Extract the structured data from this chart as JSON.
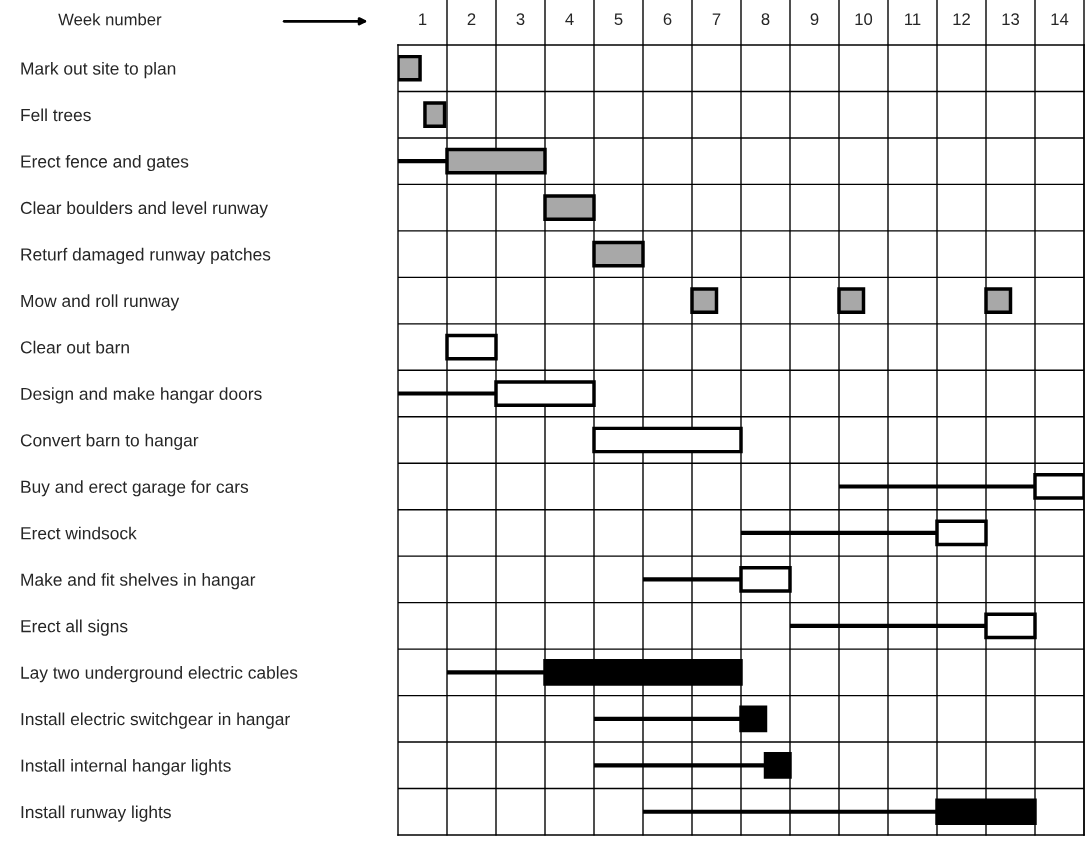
{
  "chart_data": {
    "type": "bar",
    "orientation": "horizontal",
    "xlabel": "Week number",
    "categories": [
      "Mark out site to plan",
      "Fell trees",
      "Erect fence and gates",
      "Clear boulders and level runway",
      "Returf damaged runway patches",
      "Mow and roll runway",
      "Clear out barn",
      "Design and make hangar doors",
      "Convert barn to hangar",
      "Buy and erect garage for cars",
      "Erect windsock",
      "Make and fit shelves in hangar",
      "Erect all signs",
      "Lay two underground electric cables",
      "Install electric switchgear in hangar",
      "Install internal hangar lights",
      "Install runway lights"
    ],
    "xlim": [
      0,
      14
    ],
    "xticks": [
      {
        "value": 0.5,
        "label": "1"
      },
      {
        "value": 1.5,
        "label": "2"
      },
      {
        "value": 2.5,
        "label": "3"
      },
      {
        "value": 3.5,
        "label": "4"
      },
      {
        "value": 4.5,
        "label": "5"
      },
      {
        "value": 5.5,
        "label": "6"
      },
      {
        "value": 6.5,
        "label": "7"
      },
      {
        "value": 7.5,
        "label": "8"
      },
      {
        "value": 8.5,
        "label": "9"
      },
      {
        "value": 9.5,
        "label": "10"
      },
      {
        "value": 10.5,
        "label": "11"
      },
      {
        "value": 11.5,
        "label": "12"
      },
      {
        "value": 12.5,
        "label": "13"
      },
      {
        "value": 13.5,
        "label": "14"
      }
    ],
    "grid": true,
    "series": [
      {
        "color": "#000000",
        "base": [
          null,
          null,
          0,
          null,
          null,
          null,
          null,
          0,
          null,
          9,
          7,
          5,
          8,
          1,
          4,
          4,
          5
        ],
        "values": [
          null,
          null,
          1,
          null,
          null,
          null,
          null,
          2,
          null,
          4,
          4,
          2,
          4,
          2,
          3,
          3.5,
          6
        ]
      },
      {
        "type": "bar",
        "color": "#a8a8a8",
        "base": [
          0,
          0.55,
          1,
          3,
          4,
          6,
          null,
          null,
          null,
          null,
          null,
          null,
          null,
          null,
          null,
          null,
          null
        ],
        "values": [
          0.45,
          0.4,
          2,
          1,
          1,
          0.5,
          null,
          null,
          null,
          null,
          null,
          null,
          null,
          null,
          null,
          null,
          null
        ]
      },
      {
        "type": "bar",
        "color": "#a8a8a8",
        "base": [
          null,
          null,
          null,
          null,
          null,
          9,
          null,
          null,
          null,
          null,
          null,
          null,
          null,
          null,
          null,
          null,
          null
        ],
        "values": [
          null,
          null,
          null,
          null,
          null,
          0.5,
          null,
          null,
          null,
          null,
          null,
          null,
          null,
          null,
          null,
          null,
          null
        ]
      },
      {
        "type": "bar",
        "color": "#a8a8a8",
        "base": [
          null,
          null,
          null,
          null,
          null,
          12,
          null,
          null,
          null,
          null,
          null,
          null,
          null,
          null,
          null,
          null,
          null
        ],
        "values": [
          null,
          null,
          null,
          null,
          null,
          0.5,
          null,
          null,
          null,
          null,
          null,
          null,
          null,
          null,
          null,
          null,
          null
        ]
      },
      {
        "type": "bar",
        "color": "#ffffff",
        "base": [
          null,
          null,
          null,
          null,
          null,
          null,
          1,
          2,
          4,
          13,
          11,
          7,
          12,
          null,
          null,
          null,
          null
        ],
        "values": [
          null,
          null,
          null,
          null,
          null,
          null,
          1,
          2,
          3,
          1,
          1,
          1,
          1,
          null,
          null,
          null,
          null
        ]
      },
      {
        "type": "bar",
        "color": "#000000",
        "base": [
          null,
          null,
          null,
          null,
          null,
          null,
          null,
          null,
          null,
          null,
          null,
          null,
          null,
          3,
          7,
          7.5,
          11
        ],
        "values": [
          null,
          null,
          null,
          null,
          null,
          null,
          null,
          null,
          null,
          null,
          null,
          null,
          null,
          4,
          0.5,
          0.5,
          2
        ]
      }
    ]
  }
}
